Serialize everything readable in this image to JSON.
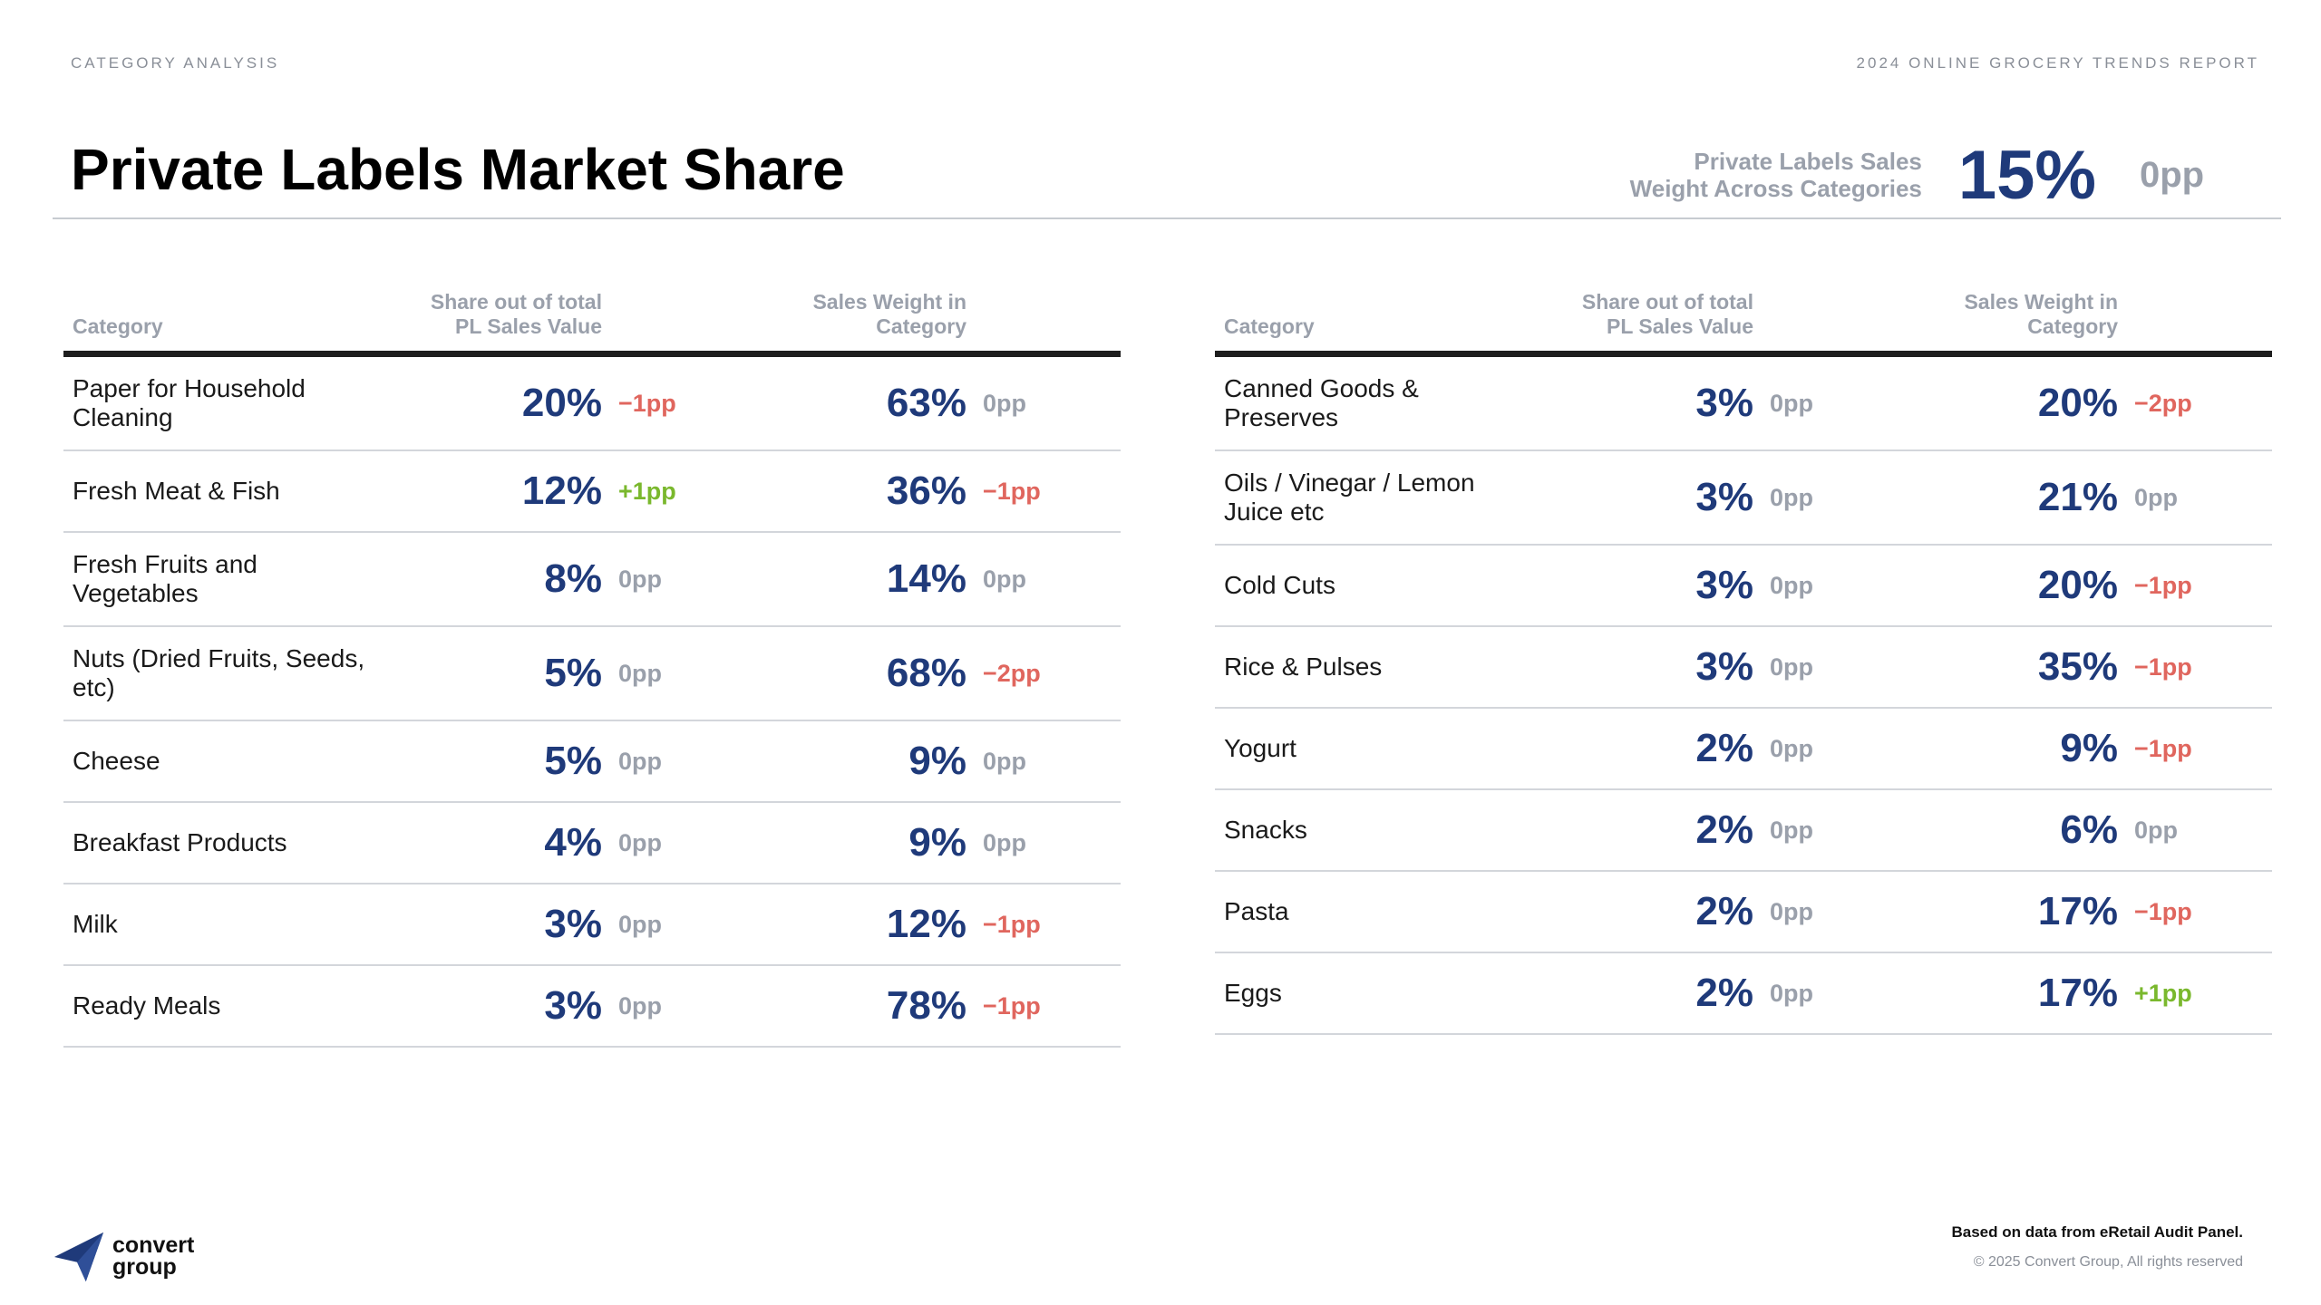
{
  "header": {
    "section": "CATEGORY ANALYSIS",
    "report": "2024 ONLINE GROCERY TRENDS REPORT",
    "title": "Private Labels Market Share"
  },
  "summary": {
    "label_line1": "Private Labels Sales",
    "label_line2": "Weight Across Categories",
    "value": "15%",
    "delta": "0pp"
  },
  "columns": {
    "category": "Category",
    "share_line1": "Share out of total",
    "share_line2": "PL Sales Value",
    "weight_line1": "Sales Weight in",
    "weight_line2": "Category"
  },
  "left_rows": [
    {
      "cat1": "Paper for Household",
      "cat2": "Cleaning",
      "share": "20%",
      "share_d": "−1pp",
      "share_t": "neg",
      "weight": "63%",
      "weight_d": "0pp",
      "weight_t": "neutral"
    },
    {
      "cat1": "Fresh Meat & Fish",
      "cat2": "",
      "share": "12%",
      "share_d": "+1pp",
      "share_t": "pos",
      "weight": "36%",
      "weight_d": "−1pp",
      "weight_t": "neg"
    },
    {
      "cat1": "Fresh Fruits and",
      "cat2": "Vegetables",
      "share": "8%",
      "share_d": "0pp",
      "share_t": "neutral",
      "weight": "14%",
      "weight_d": "0pp",
      "weight_t": "neutral"
    },
    {
      "cat1": "Nuts (Dried Fruits, Seeds,",
      "cat2": "etc)",
      "share": "5%",
      "share_d": "0pp",
      "share_t": "neutral",
      "weight": "68%",
      "weight_d": "−2pp",
      "weight_t": "neg"
    },
    {
      "cat1": "Cheese",
      "cat2": "",
      "share": "5%",
      "share_d": "0pp",
      "share_t": "neutral",
      "weight": "9%",
      "weight_d": "0pp",
      "weight_t": "neutral"
    },
    {
      "cat1": "Breakfast Products",
      "cat2": "",
      "share": "4%",
      "share_d": "0pp",
      "share_t": "neutral",
      "weight": "9%",
      "weight_d": "0pp",
      "weight_t": "neutral"
    },
    {
      "cat1": "Milk",
      "cat2": "",
      "share": "3%",
      "share_d": "0pp",
      "share_t": "neutral",
      "weight": "12%",
      "weight_d": "−1pp",
      "weight_t": "neg"
    },
    {
      "cat1": "Ready Meals",
      "cat2": "",
      "share": "3%",
      "share_d": "0pp",
      "share_t": "neutral",
      "weight": "78%",
      "weight_d": "−1pp",
      "weight_t": "neg"
    }
  ],
  "right_rows": [
    {
      "cat1": "Canned Goods &",
      "cat2": "Preserves",
      "share": "3%",
      "share_d": "0pp",
      "share_t": "neutral",
      "weight": "20%",
      "weight_d": "−2pp",
      "weight_t": "neg"
    },
    {
      "cat1": "Oils / Vinegar / Lemon",
      "cat2": "Juice etc",
      "share": "3%",
      "share_d": "0pp",
      "share_t": "neutral",
      "weight": "21%",
      "weight_d": "0pp",
      "weight_t": "neutral"
    },
    {
      "cat1": "Cold Cuts",
      "cat2": "",
      "share": "3%",
      "share_d": "0pp",
      "share_t": "neutral",
      "weight": "20%",
      "weight_d": "−1pp",
      "weight_t": "neg"
    },
    {
      "cat1": "Rice & Pulses",
      "cat2": "",
      "share": "3%",
      "share_d": "0pp",
      "share_t": "neutral",
      "weight": "35%",
      "weight_d": "−1pp",
      "weight_t": "neg"
    },
    {
      "cat1": "Yogurt",
      "cat2": "",
      "share": "2%",
      "share_d": "0pp",
      "share_t": "neutral",
      "weight": "9%",
      "weight_d": "−1pp",
      "weight_t": "neg"
    },
    {
      "cat1": "Snacks",
      "cat2": "",
      "share": "2%",
      "share_d": "0pp",
      "share_t": "neutral",
      "weight": "6%",
      "weight_d": "0pp",
      "weight_t": "neutral"
    },
    {
      "cat1": "Pasta",
      "cat2": "",
      "share": "2%",
      "share_d": "0pp",
      "share_t": "neutral",
      "weight": "17%",
      "weight_d": "−1pp",
      "weight_t": "neg"
    },
    {
      "cat1": "Eggs",
      "cat2": "",
      "share": "2%",
      "share_d": "0pp",
      "share_t": "neutral",
      "weight": "17%",
      "weight_d": "+1pp",
      "weight_t": "pos"
    }
  ],
  "footer": {
    "logo_line1": "convert",
    "logo_line2": "group",
    "logo_icon": "paper-plane-icon",
    "source": "Based on data from eRetail Audit Panel.",
    "copyright": "© 2025 Convert Group, All rights reserved"
  },
  "colors": {
    "value_blue": "#1f3a7a",
    "negative_red": "#e0665e",
    "positive_green": "#7ab82d",
    "neutral_gray": "#9aa0ab"
  }
}
